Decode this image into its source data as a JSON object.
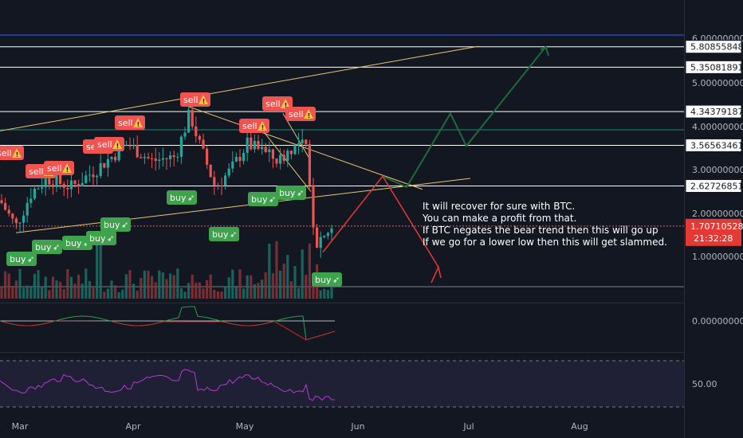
{
  "chart_data": {
    "type": "candlestick",
    "price_axis": {
      "labels": [
        {
          "value": 6.0,
          "text": "6.00000000"
        },
        {
          "value": 5.0,
          "text": "5.00000000"
        },
        {
          "value": 4.0,
          "text": "4.00000000"
        },
        {
          "value": 3.0,
          "text": "3.00000000"
        },
        {
          "value": 2.0,
          "text": "2.00000000"
        },
        {
          "value": 1.0,
          "text": "1.00000000"
        }
      ]
    },
    "horizontal_levels": [
      {
        "value": 5.80855848,
        "text": "5.80855848"
      },
      {
        "value": 5.35081891,
        "text": "5.35081891"
      },
      {
        "value": 4.34379187,
        "text": "4.34379187"
      },
      {
        "value": 3.56563461,
        "text": "3.56563461"
      },
      {
        "value": 2.62726851,
        "text": "2.62726851"
      }
    ],
    "current_price": {
      "value": 1.70710528,
      "text": "1.70710528",
      "countdown": "21:32:28"
    },
    "time_axis": [
      "Mar",
      "Apr",
      "May",
      "Jun",
      "Jul",
      "Aug"
    ],
    "oscillator_axis": {
      "label": "0.00000000"
    },
    "rsi_axis": {
      "label": "50.00"
    },
    "colors": {
      "up": "#26a69a",
      "down": "#ef5350",
      "trend": "#e8c56d",
      "projection_up": "#1e6b3a",
      "projection_down": "#e53935"
    }
  },
  "signals": {
    "buy_label": "buy",
    "sell_label": "sell",
    "buy_icon": "rocket-icon",
    "sell_icon": "warning-icon"
  },
  "annotation": {
    "lines": [
      "It will recover for sure with BTC.",
      "You can make a profit from that.",
      "If BTC negates the bear trend then this will go up",
      "If we go for a lower low then this will get slammed."
    ]
  }
}
